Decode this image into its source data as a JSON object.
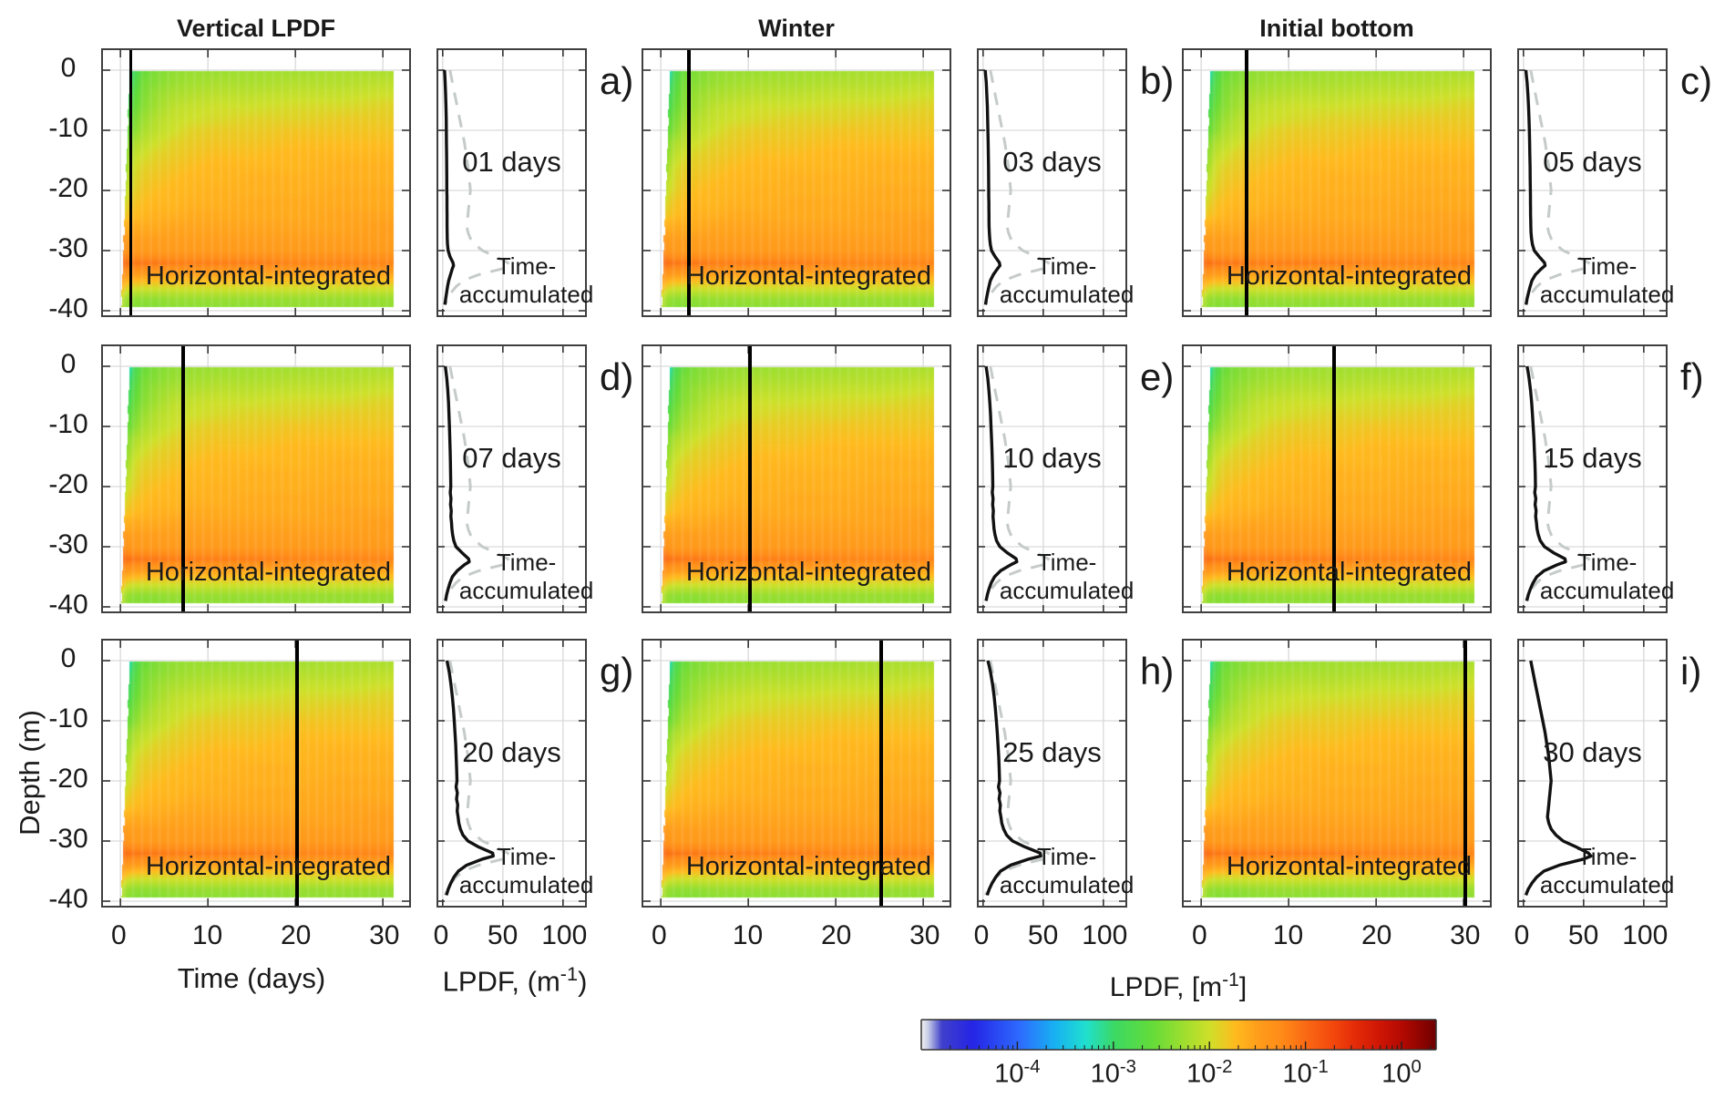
{
  "figure": {
    "column_titles": [
      "Vertical LPDF",
      "Winter",
      "Initial bottom"
    ],
    "ylabel": "Depth (m)",
    "time_axis_title": "Time (days)",
    "lpdf_axis_title": {
      "prefix": "LPDF, (m",
      "sup": "-1",
      "suffix": ")"
    }
  },
  "axes": {
    "depth_tick_labels": [
      "0",
      "-10",
      "-20",
      "-30",
      "-40"
    ],
    "depth_tick_values": [
      0,
      -10,
      -20,
      -30,
      -40
    ],
    "time_tick_labels": [
      "0",
      "10",
      "20",
      "30"
    ],
    "time_tick_values": [
      0,
      10,
      20,
      30
    ],
    "lpdf_tick_labels": [
      "0",
      "50",
      "100"
    ],
    "lpdf_tick_values": [
      0,
      50,
      100
    ]
  },
  "labels": {
    "heatmap_overlay": "Horizontal-integrated",
    "profile_label_line1": "Time-",
    "profile_label_line2": "accumulated"
  },
  "colorbar": {
    "title": {
      "prefix": "LPDF, [m",
      "sup": "-1",
      "suffix": "]"
    },
    "tick_base": "10",
    "tick_exponents": [
      "-4",
      "-3",
      "-2",
      "-1",
      "0"
    ],
    "caxis_log10": [
      -5,
      0.36
    ]
  },
  "colors": {
    "panel_border": "#3f3f3f",
    "gridline": "#d9d9d9",
    "tick": "#333333",
    "day_marker": "#000000",
    "profile_solid": "#111111",
    "profile_dashed": "#c5cbc9",
    "text": "#1a1a1a"
  },
  "chart_data": {
    "type": "heatmap",
    "description": "3x3 grid of panel pairs: each pair shows a depth-time heatmap of horizontally-integrated LPDF (log color scale) with a vertical black marker at the analysis day, plus a vertical profile plot of instantaneous LPDF (solid) and time-accumulated LPDF (dashed).",
    "scenario_columns": [
      "Vertical LPDF",
      "Winter",
      "Initial bottom"
    ],
    "xlabel": "Time (days)",
    "ylabel": "Depth (m)",
    "xlim_days": [
      -2,
      33
    ],
    "ylim_m": [
      3.3,
      -41.4
    ],
    "profile_xlim": [
      -4,
      118
    ],
    "panels": [
      {
        "letter": "a)",
        "day": 1,
        "day_label": "01 days",
        "scenario": "Vertical LPDF"
      },
      {
        "letter": "b)",
        "day": 3,
        "day_label": "03 days",
        "scenario": "Winter"
      },
      {
        "letter": "c)",
        "day": 5,
        "day_label": "05 days",
        "scenario": "Initial bottom"
      },
      {
        "letter": "d)",
        "day": 7,
        "day_label": "07 days",
        "scenario": "Vertical LPDF"
      },
      {
        "letter": "e)",
        "day": 10,
        "day_label": "10 days",
        "scenario": "Winter"
      },
      {
        "letter": "f)",
        "day": 15,
        "day_label": "15 days",
        "scenario": "Initial bottom"
      },
      {
        "letter": "g)",
        "day": 20,
        "day_label": "20 days",
        "scenario": "Vertical LPDF"
      },
      {
        "letter": "h)",
        "day": 25,
        "day_label": "25 days",
        "scenario": "Winter"
      },
      {
        "letter": "i)",
        "day": 30,
        "day_label": "30 days",
        "scenario": "Initial bottom"
      }
    ],
    "heatmap_grid": {
      "time_days": [
        0.15,
        0.4,
        0.8,
        1.5,
        2.5,
        4,
        6,
        8,
        11,
        15,
        20,
        25,
        30
      ],
      "depth_m": [
        0,
        -2,
        -4,
        -6,
        -8,
        -10,
        -12,
        -14,
        -16,
        -18,
        -20,
        -22,
        -24,
        -26,
        -28,
        -30,
        -32,
        -34,
        -36,
        -38,
        -40
      ],
      "log10_lpdf": [
        [
          -4.9,
          -4.5,
          -3.4,
          -2.9,
          -2.6,
          -2.45,
          -2.35,
          -2.3,
          -2.3,
          -2.25,
          -2.25,
          -2.2,
          -2.2
        ],
        [
          -4.8,
          -4.3,
          -3.2,
          -2.8,
          -2.5,
          -2.4,
          -2.3,
          -2.25,
          -2.2,
          -2.2,
          -2.15,
          -2.15,
          -2.1
        ],
        [
          -4.6,
          -4.0,
          -3.0,
          -2.7,
          -2.45,
          -2.3,
          -2.2,
          -2.15,
          -2.1,
          -2.1,
          -2.05,
          -2.05,
          -2.0
        ],
        [
          -4.3,
          -3.7,
          -2.9,
          -2.6,
          -2.4,
          -2.25,
          -2.1,
          -2.05,
          -2.0,
          -2.0,
          -1.95,
          -1.95,
          -1.9
        ],
        [
          -4.0,
          -3.4,
          -2.7,
          -2.5,
          -2.3,
          -2.15,
          -2.05,
          -2.0,
          -1.95,
          -1.9,
          -1.9,
          -1.85,
          -1.85
        ],
        [
          -3.7,
          -3.1,
          -2.6,
          -2.4,
          -2.2,
          -2.1,
          -2.0,
          -1.9,
          -1.85,
          -1.85,
          -1.8,
          -1.8,
          -1.8
        ],
        [
          -3.4,
          -2.9,
          -2.4,
          -2.2,
          -2.1,
          -2.0,
          -1.9,
          -1.85,
          -1.8,
          -1.8,
          -1.75,
          -1.75,
          -1.75
        ],
        [
          -3.1,
          -2.7,
          -2.3,
          -2.1,
          -2.0,
          -1.9,
          -1.85,
          -1.8,
          -1.75,
          -1.75,
          -1.7,
          -1.7,
          -1.7
        ],
        [
          -2.9,
          -2.5,
          -2.2,
          -2.0,
          -1.9,
          -1.85,
          -1.8,
          -1.75,
          -1.7,
          -1.7,
          -1.7,
          -1.65,
          -1.65
        ],
        [
          -2.7,
          -2.3,
          -2.1,
          -1.95,
          -1.85,
          -1.8,
          -1.75,
          -1.7,
          -1.7,
          -1.65,
          -1.65,
          -1.65,
          -1.65
        ],
        [
          -2.5,
          -2.2,
          -2.0,
          -1.9,
          -1.8,
          -1.75,
          -1.7,
          -1.7,
          -1.65,
          -1.65,
          -1.65,
          -1.6,
          -1.6
        ],
        [
          -2.3,
          -2.0,
          -1.9,
          -1.8,
          -1.75,
          -1.7,
          -1.7,
          -1.65,
          -1.65,
          -1.6,
          -1.6,
          -1.6,
          -1.6
        ],
        [
          -2.0,
          -1.85,
          -1.8,
          -1.75,
          -1.7,
          -1.65,
          -1.65,
          -1.6,
          -1.6,
          -1.6,
          -1.6,
          -1.55,
          -1.55
        ],
        [
          -1.6,
          -1.6,
          -1.65,
          -1.6,
          -1.6,
          -1.6,
          -1.55,
          -1.55,
          -1.55,
          -1.55,
          -1.55,
          -1.55,
          -1.5
        ],
        [
          -1.35,
          -1.4,
          -1.5,
          -1.5,
          -1.5,
          -1.5,
          -1.5,
          -1.5,
          -1.5,
          -1.5,
          -1.5,
          -1.5,
          -1.5
        ],
        [
          -1.2,
          -1.3,
          -1.4,
          -1.45,
          -1.45,
          -1.45,
          -1.45,
          -1.45,
          -1.45,
          -1.45,
          -1.45,
          -1.45,
          -1.45
        ],
        [
          -0.95,
          -1.0,
          -1.05,
          -1.1,
          -1.1,
          -1.1,
          -1.15,
          -1.15,
          -1.15,
          -1.15,
          -1.2,
          -1.2,
          -1.2
        ],
        [
          -1.35,
          -1.4,
          -1.45,
          -1.5,
          -1.5,
          -1.55,
          -1.55,
          -1.55,
          -1.55,
          -1.6,
          -1.6,
          -1.6,
          -1.6
        ],
        [
          -1.7,
          -1.8,
          -1.9,
          -1.95,
          -1.95,
          -1.95,
          -1.95,
          -1.95,
          -1.95,
          -1.95,
          -1.95,
          -1.95,
          -1.95
        ],
        [
          -2.1,
          -2.2,
          -2.3,
          -2.35,
          -2.35,
          -2.35,
          -2.3,
          -2.3,
          -2.3,
          -2.3,
          -2.3,
          -2.3,
          -2.3
        ],
        [
          -2.2,
          -2.3,
          -2.4,
          -2.45,
          -2.45,
          -2.45,
          -2.4,
          -2.4,
          -2.4,
          -2.4,
          -2.35,
          -2.35,
          -2.35
        ]
      ]
    },
    "profiles": {
      "units": "m^-1",
      "depth_m": [
        0,
        -1,
        -2,
        -4,
        -6,
        -8,
        -10,
        -12,
        -14,
        -16,
        -18,
        -20,
        -21,
        -22,
        -23,
        -24,
        -25,
        -26,
        -27,
        -28,
        -29,
        -30,
        -31,
        -32,
        -32.5,
        -33,
        -34,
        -35,
        -36,
        -37,
        -38,
        -39
      ],
      "time_accumulated": [
        6,
        7,
        8,
        10,
        12,
        14,
        16,
        18,
        19.5,
        21,
        22,
        23,
        22.5,
        22,
        21.5,
        21,
        20.5,
        20,
        21,
        23,
        27,
        33,
        44,
        54,
        56,
        50,
        30,
        17,
        11,
        7,
        4,
        2
      ],
      "instantaneous_by_day": {
        "1": [
          1.5,
          1.8,
          2,
          2.4,
          2.7,
          2.9,
          3,
          3.1,
          3.2,
          3.3,
          3.4,
          3.4,
          3.5,
          3.5,
          3.5,
          3.6,
          3.6,
          3.6,
          3.7,
          3.8,
          4,
          4.5,
          6,
          8.5,
          9,
          8,
          6.5,
          5,
          4,
          3.2,
          2.5,
          1.8
        ],
        "3": [
          1.8,
          2.2,
          2.6,
          3.1,
          3.5,
          3.8,
          4,
          4.2,
          4.4,
          4.5,
          4.6,
          4.7,
          4.7,
          4.8,
          4.8,
          4.9,
          4.9,
          5,
          5.2,
          5.5,
          6,
          7,
          10,
          13.5,
          14,
          12,
          8.5,
          6,
          4.8,
          3.8,
          2.8,
          2
        ],
        "5": [
          2,
          2.5,
          3,
          3.7,
          4.2,
          4.6,
          4.9,
          5.1,
          5.3,
          5.5,
          5.6,
          5.7,
          5.8,
          5.8,
          5.9,
          5.9,
          6,
          6.1,
          6.3,
          6.7,
          7.5,
          9,
          13,
          17.5,
          18,
          15,
          10,
          7,
          5.5,
          4.2,
          3,
          2.2
        ],
        "7": [
          2.2,
          2.8,
          3.4,
          4.2,
          4.8,
          5.2,
          5.6,
          5.9,
          6.2,
          6.4,
          6.6,
          6.7,
          6.3,
          6.9,
          6.5,
          7.1,
          6.8,
          7.3,
          7.6,
          8.2,
          9.2,
          11,
          16,
          21.5,
          22,
          18,
          12,
          8,
          6,
          4.5,
          3.2,
          2.3
        ],
        "10": [
          2.5,
          3.2,
          3.9,
          4.8,
          5.6,
          6.2,
          6.6,
          7,
          7.4,
          7.7,
          7.9,
          8.1,
          7.6,
          8.3,
          7.9,
          8.5,
          8.2,
          8.7,
          9.1,
          9.9,
          11.2,
          14,
          20,
          27.5,
          28,
          23,
          14.5,
          9.5,
          6.8,
          5,
          3.5,
          2.5
        ],
        "15": [
          3,
          3.9,
          4.7,
          5.9,
          6.8,
          7.5,
          8.1,
          8.7,
          9.1,
          9.5,
          9.8,
          10,
          9.4,
          10.3,
          9.7,
          10.5,
          10.1,
          10.8,
          11.3,
          12.3,
          14,
          17.5,
          25,
          34.5,
          35,
          28,
          17,
          11,
          8,
          5.8,
          4,
          2.8
        ],
        "20": [
          3.5,
          4.5,
          5.5,
          6.9,
          8,
          8.9,
          9.6,
          10.2,
          10.8,
          11.2,
          11.6,
          11.9,
          11.1,
          12.2,
          11.5,
          12.5,
          12,
          12.8,
          13.4,
          14.7,
          16.8,
          21,
          30,
          41.5,
          42,
          33,
          20,
          13,
          9.3,
          6.7,
          4.6,
          3.1
        ],
        "25": [
          4,
          5.2,
          6.3,
          7.9,
          9.2,
          10.2,
          11,
          11.8,
          12.4,
          13,
          13.4,
          13.7,
          12.8,
          14.1,
          13.3,
          14.4,
          13.9,
          14.8,
          15.5,
          17,
          19.5,
          24.5,
          35,
          47.5,
          48,
          38,
          23,
          14.5,
          10.5,
          7.5,
          5.1,
          3.4
        ],
        "30": [
          6,
          7,
          8,
          10,
          12,
          14,
          16,
          18,
          19.5,
          21,
          22,
          23,
          22.5,
          22,
          21.5,
          21,
          20.5,
          20,
          21,
          23,
          27,
          33,
          44,
          54,
          56,
          50,
          30,
          17,
          11,
          7,
          4,
          2
        ]
      }
    },
    "colormap_stops": [
      [
        0.0,
        "#f2f2f2"
      ],
      [
        0.013,
        "#c9cfe6"
      ],
      [
        0.04,
        "#4040cc"
      ],
      [
        0.1,
        "#2525e6"
      ],
      [
        0.19,
        "#2e6aff"
      ],
      [
        0.26,
        "#18b2f2"
      ],
      [
        0.32,
        "#20e0cf"
      ],
      [
        0.375,
        "#3cd964"
      ],
      [
        0.45,
        "#66dc38"
      ],
      [
        0.52,
        "#a8df2e"
      ],
      [
        0.56,
        "#cfe02a"
      ],
      [
        0.61,
        "#ffbb1e"
      ],
      [
        0.655,
        "#ff9d1b"
      ],
      [
        0.7,
        "#ff8b18"
      ],
      [
        0.746,
        "#fa6a14"
      ],
      [
        0.8,
        "#f3480d"
      ],
      [
        0.84,
        "#e62d08"
      ],
      [
        0.89,
        "#cf1605"
      ],
      [
        0.933,
        "#b40a02"
      ],
      [
        1.0,
        "#700000"
      ]
    ]
  }
}
